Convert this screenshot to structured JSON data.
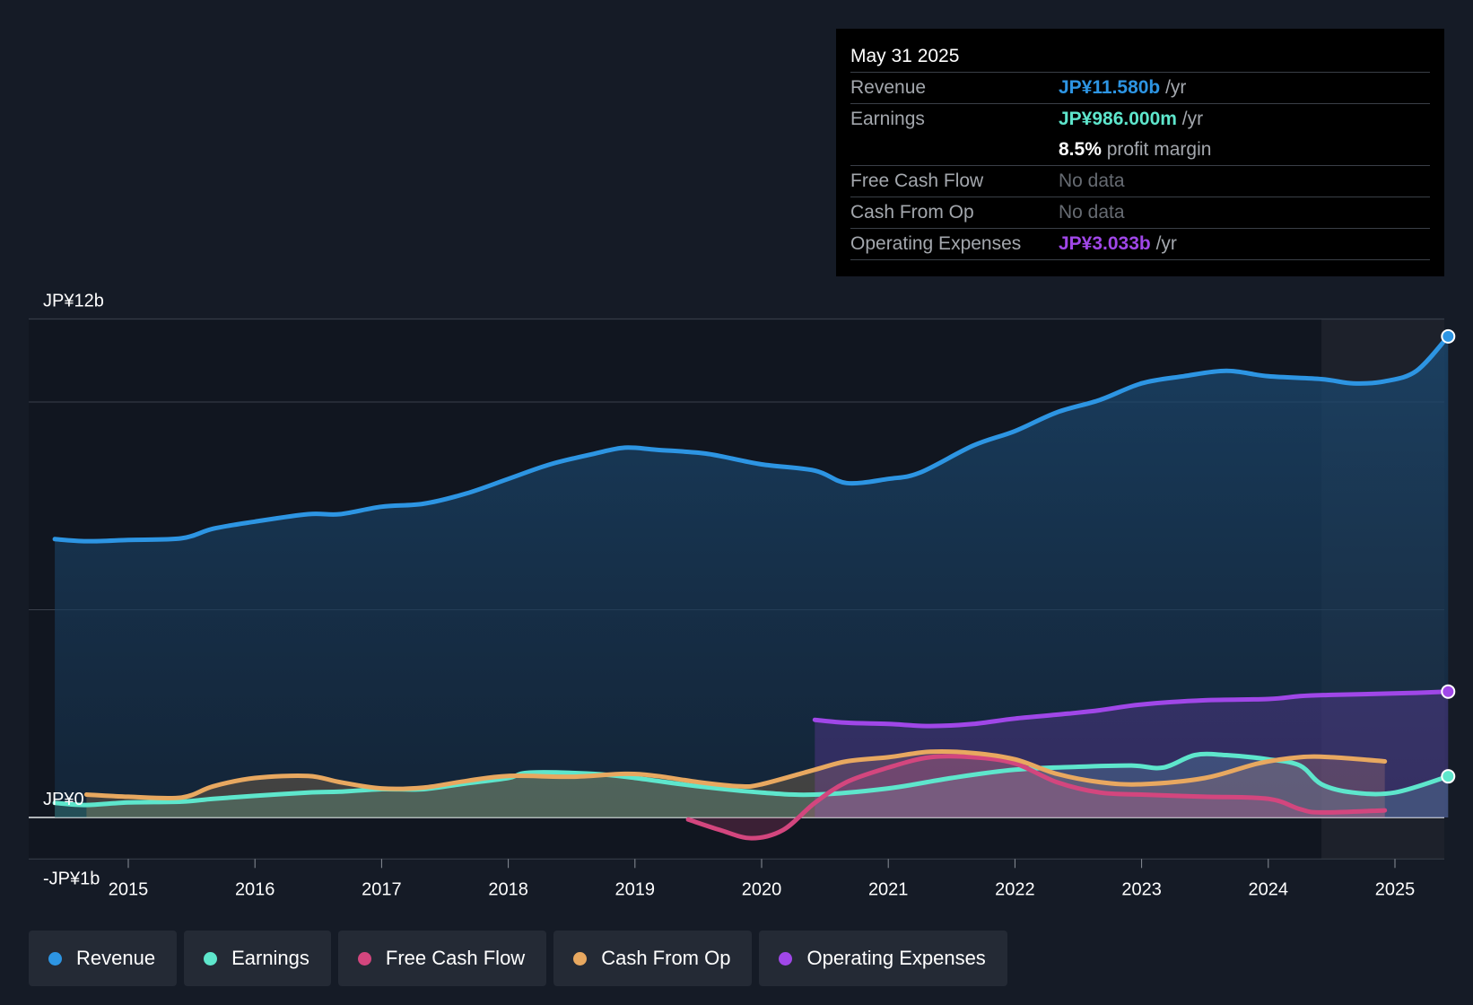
{
  "chart_data": {
    "type": "area",
    "x_range": [
      2014.0,
      2025.42
    ],
    "ylim": [
      -1,
      12
    ],
    "y_axis_labels": [
      {
        "value": 12,
        "text": "JP¥12b"
      },
      {
        "value": 0,
        "text": "JP¥0"
      },
      {
        "value": -1,
        "text": "-JP¥1b"
      }
    ],
    "gridlines": [
      12,
      10,
      5,
      0,
      -1
    ],
    "x_ticks": [
      {
        "value": 2015,
        "text": "2015"
      },
      {
        "value": 2016,
        "text": "2016"
      },
      {
        "value": 2017,
        "text": "2017"
      },
      {
        "value": 2018,
        "text": "2018"
      },
      {
        "value": 2019,
        "text": "2019"
      },
      {
        "value": 2020,
        "text": "2020"
      },
      {
        "value": 2021,
        "text": "2021"
      },
      {
        "value": 2022,
        "text": "2022"
      },
      {
        "value": 2023,
        "text": "2023"
      },
      {
        "value": 2024,
        "text": "2024"
      },
      {
        "value": 2025,
        "text": "2025"
      }
    ],
    "highlight_from": 2024.42,
    "series": [
      {
        "name": "Revenue",
        "color": "#2d95e3",
        "fill": true,
        "end_marker": true,
        "points": [
          [
            2014.42,
            6.7
          ],
          [
            2014.67,
            6.65
          ],
          [
            2015.0,
            6.68
          ],
          [
            2015.42,
            6.72
          ],
          [
            2015.67,
            6.95
          ],
          [
            2016.0,
            7.12
          ],
          [
            2016.42,
            7.3
          ],
          [
            2016.67,
            7.3
          ],
          [
            2017.0,
            7.48
          ],
          [
            2017.33,
            7.55
          ],
          [
            2017.67,
            7.8
          ],
          [
            2018.0,
            8.15
          ],
          [
            2018.33,
            8.5
          ],
          [
            2018.67,
            8.75
          ],
          [
            2018.92,
            8.9
          ],
          [
            2019.17,
            8.85
          ],
          [
            2019.5,
            8.78
          ],
          [
            2019.67,
            8.7
          ],
          [
            2020.0,
            8.5
          ],
          [
            2020.42,
            8.35
          ],
          [
            2020.67,
            8.05
          ],
          [
            2021.0,
            8.15
          ],
          [
            2021.25,
            8.3
          ],
          [
            2021.67,
            8.95
          ],
          [
            2022.0,
            9.3
          ],
          [
            2022.33,
            9.75
          ],
          [
            2022.67,
            10.05
          ],
          [
            2023.0,
            10.45
          ],
          [
            2023.33,
            10.62
          ],
          [
            2023.67,
            10.75
          ],
          [
            2024.0,
            10.62
          ],
          [
            2024.42,
            10.55
          ],
          [
            2024.67,
            10.45
          ],
          [
            2024.92,
            10.5
          ],
          [
            2025.17,
            10.75
          ],
          [
            2025.42,
            11.58
          ]
        ]
      },
      {
        "name": "Earnings",
        "color": "#5ee6cc",
        "fill": true,
        "end_marker": true,
        "points": [
          [
            2014.42,
            0.35
          ],
          [
            2014.67,
            0.3
          ],
          [
            2015.0,
            0.36
          ],
          [
            2015.42,
            0.38
          ],
          [
            2015.67,
            0.45
          ],
          [
            2016.0,
            0.52
          ],
          [
            2016.42,
            0.6
          ],
          [
            2016.67,
            0.62
          ],
          [
            2017.0,
            0.68
          ],
          [
            2017.33,
            0.68
          ],
          [
            2017.67,
            0.82
          ],
          [
            2018.0,
            0.95
          ],
          [
            2018.17,
            1.08
          ],
          [
            2018.67,
            1.05
          ],
          [
            2019.0,
            0.95
          ],
          [
            2019.5,
            0.75
          ],
          [
            2020.0,
            0.6
          ],
          [
            2020.42,
            0.55
          ],
          [
            2021.0,
            0.7
          ],
          [
            2021.5,
            0.95
          ],
          [
            2022.0,
            1.15
          ],
          [
            2022.5,
            1.22
          ],
          [
            2022.92,
            1.25
          ],
          [
            2023.17,
            1.2
          ],
          [
            2023.42,
            1.5
          ],
          [
            2023.67,
            1.5
          ],
          [
            2024.0,
            1.4
          ],
          [
            2024.25,
            1.25
          ],
          [
            2024.42,
            0.8
          ],
          [
            2024.67,
            0.6
          ],
          [
            2025.0,
            0.6
          ],
          [
            2025.42,
            0.99
          ]
        ]
      },
      {
        "name": "Free Cash Flow",
        "color": "#d3467e",
        "fill": true,
        "end_marker": false,
        "points": [
          [
            2019.42,
            -0.05
          ],
          [
            2019.67,
            -0.3
          ],
          [
            2019.92,
            -0.5
          ],
          [
            2020.17,
            -0.3
          ],
          [
            2020.42,
            0.35
          ],
          [
            2020.67,
            0.85
          ],
          [
            2021.0,
            1.2
          ],
          [
            2021.33,
            1.45
          ],
          [
            2021.67,
            1.45
          ],
          [
            2022.0,
            1.3
          ],
          [
            2022.33,
            0.85
          ],
          [
            2022.67,
            0.6
          ],
          [
            2023.0,
            0.55
          ],
          [
            2023.5,
            0.5
          ],
          [
            2024.0,
            0.45
          ],
          [
            2024.25,
            0.2
          ],
          [
            2024.42,
            0.12
          ],
          [
            2024.92,
            0.17
          ]
        ]
      },
      {
        "name": "Cash From Op",
        "color": "#e8a860",
        "fill": true,
        "end_marker": false,
        "points": [
          [
            2014.67,
            0.55
          ],
          [
            2015.0,
            0.5
          ],
          [
            2015.42,
            0.48
          ],
          [
            2015.67,
            0.75
          ],
          [
            2016.0,
            0.95
          ],
          [
            2016.42,
            1.0
          ],
          [
            2016.67,
            0.85
          ],
          [
            2017.0,
            0.7
          ],
          [
            2017.33,
            0.72
          ],
          [
            2017.67,
            0.88
          ],
          [
            2018.0,
            1.0
          ],
          [
            2018.5,
            0.98
          ],
          [
            2018.92,
            1.05
          ],
          [
            2019.17,
            1.0
          ],
          [
            2019.5,
            0.85
          ],
          [
            2019.83,
            0.75
          ],
          [
            2020.0,
            0.8
          ],
          [
            2020.42,
            1.15
          ],
          [
            2020.67,
            1.35
          ],
          [
            2021.0,
            1.45
          ],
          [
            2021.33,
            1.58
          ],
          [
            2021.67,
            1.55
          ],
          [
            2022.0,
            1.4
          ],
          [
            2022.33,
            1.05
          ],
          [
            2022.67,
            0.85
          ],
          [
            2023.0,
            0.8
          ],
          [
            2023.5,
            0.95
          ],
          [
            2023.92,
            1.3
          ],
          [
            2024.25,
            1.45
          ],
          [
            2024.5,
            1.45
          ],
          [
            2024.92,
            1.35
          ]
        ]
      },
      {
        "name": "Operating Expenses",
        "color": "#a047e8",
        "fill": true,
        "end_marker": true,
        "points": [
          [
            2020.42,
            2.35
          ],
          [
            2020.67,
            2.28
          ],
          [
            2021.0,
            2.25
          ],
          [
            2021.33,
            2.2
          ],
          [
            2021.67,
            2.25
          ],
          [
            2022.0,
            2.38
          ],
          [
            2022.42,
            2.5
          ],
          [
            2022.67,
            2.58
          ],
          [
            2023.0,
            2.72
          ],
          [
            2023.5,
            2.82
          ],
          [
            2024.0,
            2.85
          ],
          [
            2024.25,
            2.92
          ],
          [
            2024.5,
            2.95
          ],
          [
            2024.92,
            2.98
          ],
          [
            2025.17,
            3.0
          ],
          [
            2025.42,
            3.03
          ]
        ]
      }
    ]
  },
  "tooltip": {
    "date": "May 31 2025",
    "rows": [
      {
        "label": "Revenue",
        "value": "JP¥11.580b",
        "unit": " /yr",
        "color": "#2d95e3"
      },
      {
        "label": "Earnings",
        "value": "JP¥986.000m",
        "unit": " /yr",
        "color": "#5ee6cc"
      },
      {
        "label": "",
        "value": "8.5%",
        "unit": " profit margin",
        "color": "#ffffff"
      },
      {
        "label": "Free Cash Flow",
        "value": "No data"
      },
      {
        "label": "Cash From Op",
        "value": "No data"
      },
      {
        "label": "Operating Expenses",
        "value": "JP¥3.033b",
        "unit": " /yr",
        "color": "#a047e8"
      }
    ]
  },
  "legend": [
    {
      "label": "Revenue",
      "color": "#2d95e3"
    },
    {
      "label": "Earnings",
      "color": "#5ee6cc"
    },
    {
      "label": "Free Cash Flow",
      "color": "#d3467e"
    },
    {
      "label": "Cash From Op",
      "color": "#e8a860"
    },
    {
      "label": "Operating Expenses",
      "color": "#a047e8"
    }
  ]
}
